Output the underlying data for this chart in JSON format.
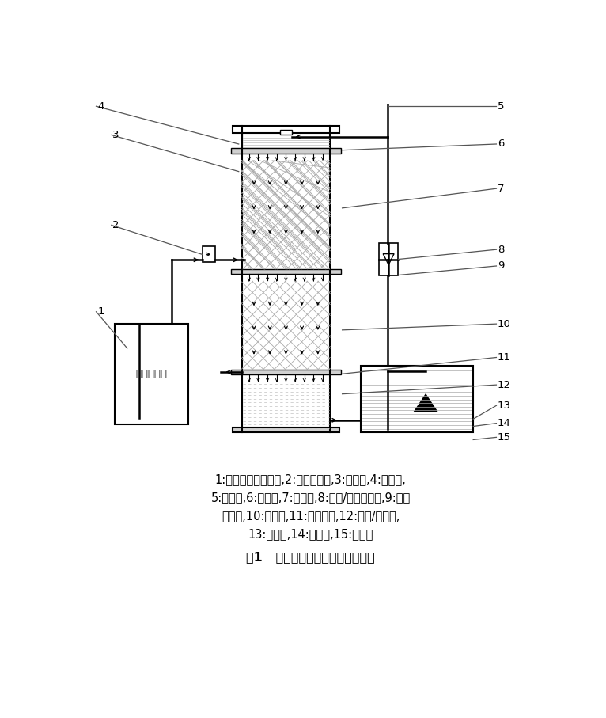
{
  "title": "图1   臭氧溶解效率试验系统示意图",
  "caption_line1": "1:纯氧源臭氧发生器,2:气体流量计,3:进气口,4:进水层,",
  "caption_line2": "5:进水口,6:布水板,7:混合层,8:布水/导气支撑板,9:液体",
  "caption_line3": "流量计,10:混合层,11:尾气出口,12:出水/气底座,",
  "caption_line4": "13:出水口,14:蓄水池,15:潜水泵",
  "bg_color": "#ffffff",
  "line_color": "#000000"
}
